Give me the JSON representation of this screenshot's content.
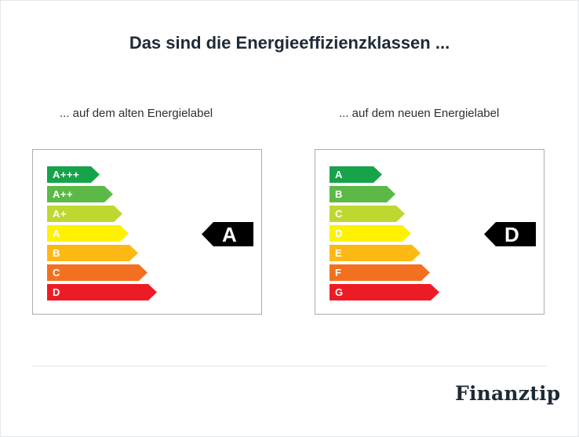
{
  "title": "Das sind die Energieeffizienzklassen ...",
  "old_label": {
    "subtitle": "... auf dem alten Energielabel",
    "classes": [
      {
        "label": "A+++",
        "color": "#17a34a"
      },
      {
        "label": "A++",
        "color": "#5cb947"
      },
      {
        "label": "A+",
        "color": "#bfd730"
      },
      {
        "label": "A",
        "color": "#fff200"
      },
      {
        "label": "B",
        "color": "#fdb913"
      },
      {
        "label": "C",
        "color": "#f37021"
      },
      {
        "label": "D",
        "color": "#ed1c24"
      }
    ],
    "rating": "A"
  },
  "new_label": {
    "subtitle": "... auf dem neuen Energielabel",
    "classes": [
      {
        "label": "A",
        "color": "#17a34a"
      },
      {
        "label": "B",
        "color": "#5cb947"
      },
      {
        "label": "C",
        "color": "#bfd730"
      },
      {
        "label": "D",
        "color": "#fff200"
      },
      {
        "label": "E",
        "color": "#fdb913"
      },
      {
        "label": "F",
        "color": "#f37021"
      },
      {
        "label": "G",
        "color": "#ed1c24"
      }
    ],
    "rating": "D"
  },
  "logo": "Finanztip"
}
